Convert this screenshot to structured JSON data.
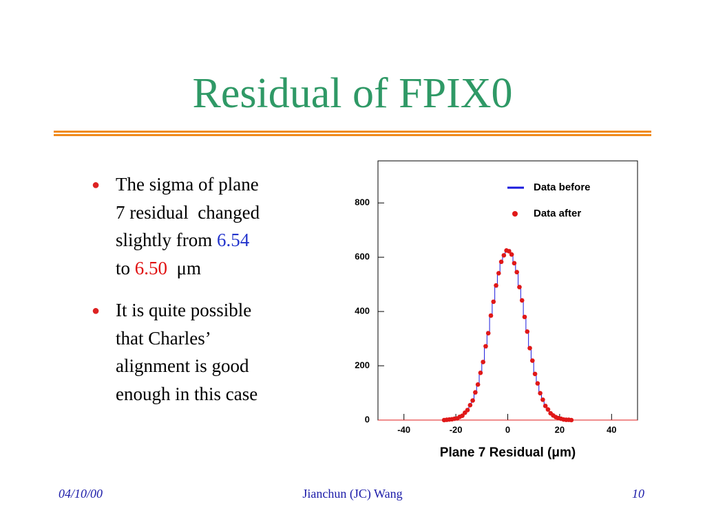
{
  "header": {
    "title": "Residual of FPIX0"
  },
  "bullets": [
    [
      "The sigma of plane",
      "7 residual  changed",
      "slightly from ",
      "6.54",
      "to ",
      "6.50",
      "  μm"
    ],
    [
      "It is quite possible",
      "that Charles’",
      "alignment is good",
      "enough in this case"
    ]
  ],
  "chart_data": {
    "type": "histogram",
    "xlabel": "Plane 7 Residual (μm)",
    "bins": [
      -25,
      -24,
      -23,
      -22,
      -21,
      -20,
      -19,
      -18,
      -17,
      -16,
      -15,
      -14,
      -13,
      -12,
      -11,
      -10,
      -9,
      -8,
      -7,
      -6,
      -5,
      -4,
      -3,
      -2,
      -1,
      0,
      1,
      2,
      3,
      4,
      5,
      6,
      7,
      8,
      9,
      10,
      11,
      12,
      13,
      14,
      15,
      16,
      17,
      18,
      19,
      20,
      21,
      22,
      23,
      24,
      25
    ],
    "series": [
      {
        "name": "Data before",
        "color": "#1a1adc",
        "style": "step",
        "values": [
          1,
          1,
          2,
          3,
          4,
          7,
          11,
          17,
          25,
          39,
          52,
          75,
          99,
          135,
          170,
          219,
          266,
          326,
          380,
          440,
          490,
          545,
          578,
          612,
          620,
          628,
          605,
          583,
          540,
          495,
          437,
          384,
          322,
          270,
          215,
          174,
          131,
          102,
          72,
          54,
          37,
          27,
          16,
          11,
          7,
          4,
          3,
          2,
          1,
          0
        ]
      },
      {
        "name": "Data after",
        "color": "#e01818",
        "style": "points",
        "values": [
          0,
          1,
          2,
          3,
          5,
          6,
          12,
          16,
          27,
          37,
          55,
          72,
          102,
          131,
          174,
          214,
          272,
          320,
          385,
          436,
          496,
          541,
          583,
          607,
          625,
          622,
          610,
          578,
          545,
          490,
          441,
          380,
          326,
          265,
          219,
          170,
          135,
          99,
          75,
          52,
          39,
          25,
          17,
          11,
          7,
          5,
          2,
          1,
          1,
          0
        ]
      }
    ],
    "xlim": [
      -50,
      50
    ],
    "ylim": [
      0,
      955
    ],
    "xticks": [
      -40,
      -20,
      0,
      20,
      40
    ],
    "yticks": [
      0,
      200,
      400,
      600,
      800
    ]
  },
  "footer": {
    "date": "04/10/00",
    "author": "Jianchun (JC) Wang",
    "page": "10"
  }
}
